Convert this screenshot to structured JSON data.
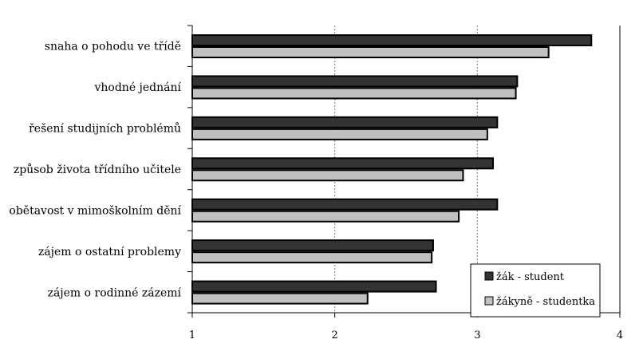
{
  "chart_data": {
    "type": "bar",
    "orientation": "horizontal",
    "categories": [
      "snaha o pohodu ve třídě",
      "vhodné jednání",
      "řešení studijních problémů",
      "způsob života třídního učitele",
      "obětavost v mimoškolním dění",
      "zájem o ostatní problemy",
      "zájem o rodinné zázemí"
    ],
    "series": [
      {
        "name": "žák - student",
        "color": "#333333",
        "values": [
          3.8,
          3.28,
          3.14,
          3.11,
          3.14,
          2.69,
          2.71
        ]
      },
      {
        "name": "žákyně - studentka",
        "color": "#c0c0c0",
        "values": [
          3.5,
          3.27,
          3.07,
          2.9,
          2.87,
          2.68,
          2.23
        ]
      }
    ],
    "xlim": [
      1,
      4
    ],
    "xticks": [
      "1",
      "2",
      "3",
      "4"
    ],
    "grid": "vertical dashed at 2 and 3",
    "legend": "bottom-right",
    "title": "",
    "xlabel": "",
    "ylabel": ""
  }
}
